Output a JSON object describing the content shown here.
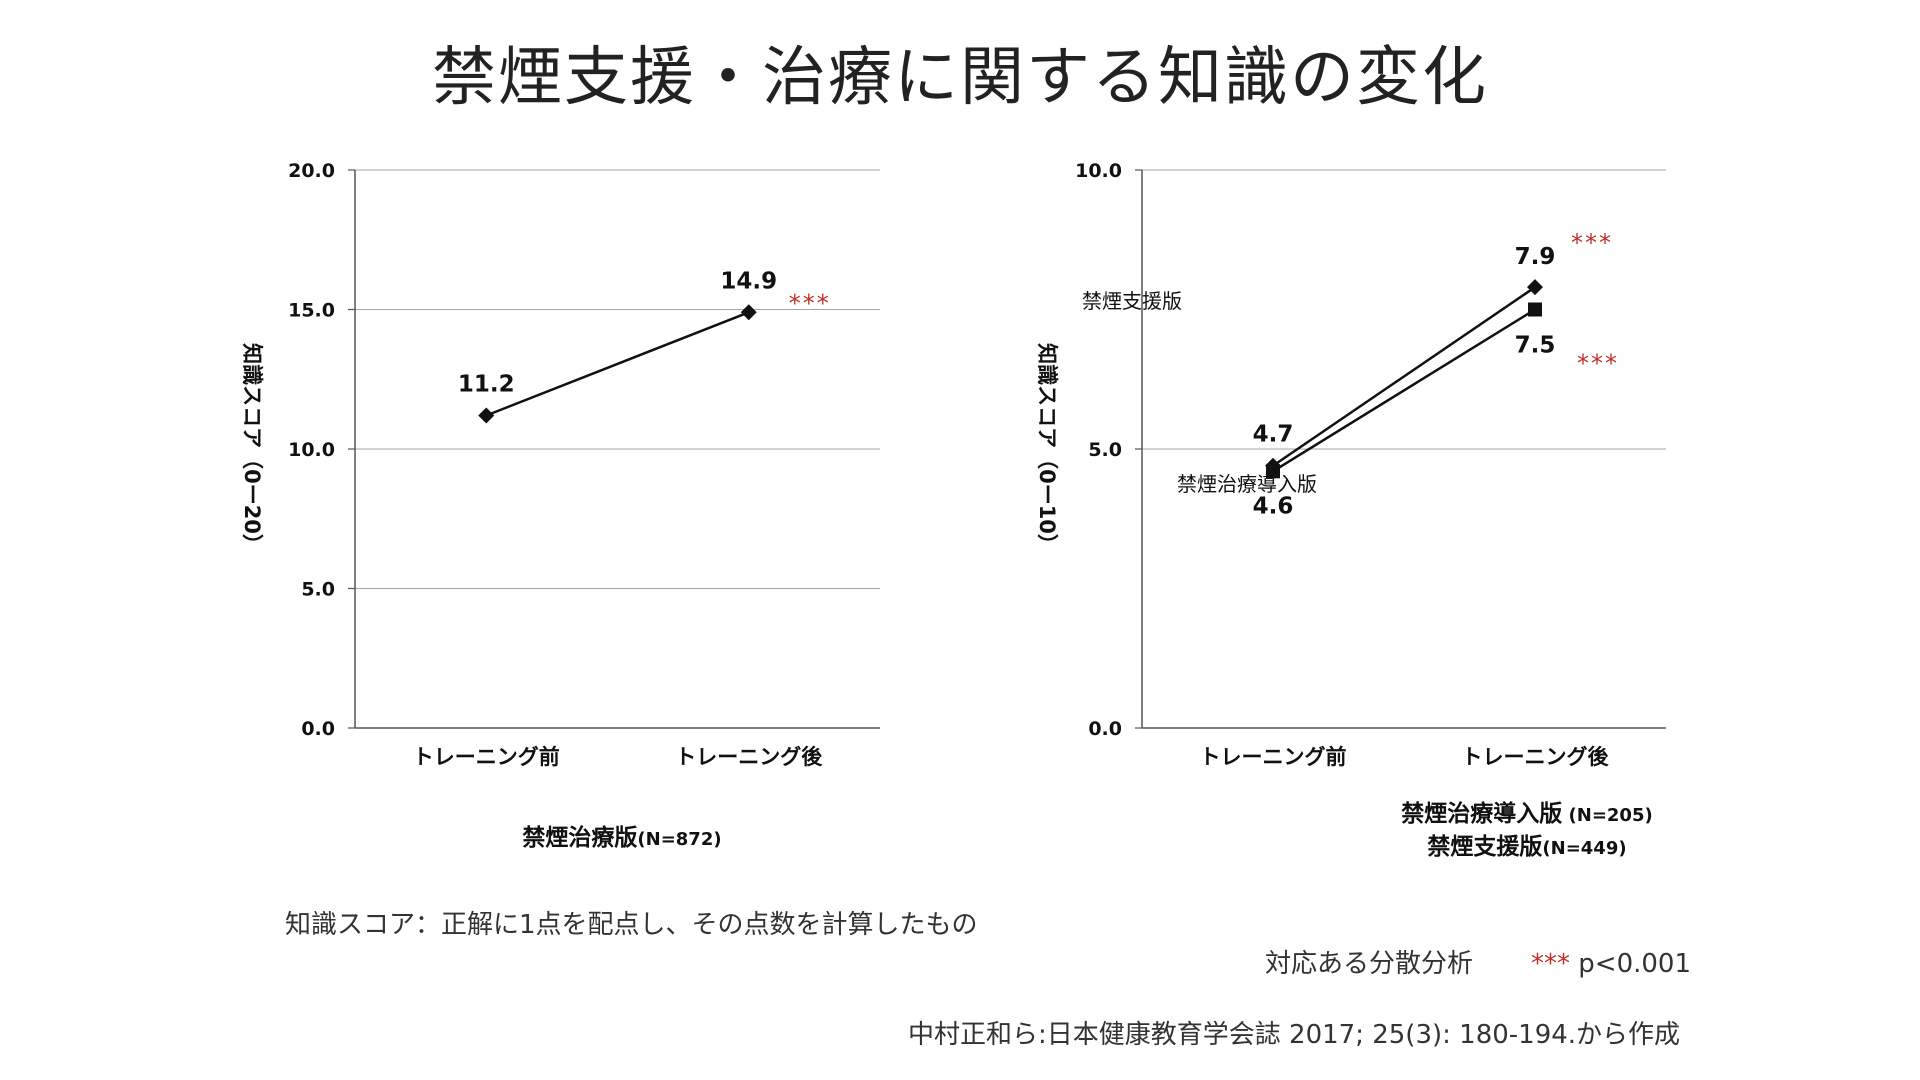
{
  "title": "禁煙支援・治療に関する知識の変化",
  "chart_data": [
    {
      "type": "line",
      "ylabel": "知識スコア（0ー20）",
      "ylim": [
        0,
        20
      ],
      "yticks": [
        "0.0",
        "5.0",
        "10.0",
        "15.0",
        "20.0"
      ],
      "categories": [
        "トレーニング前",
        "トレーニング後"
      ],
      "series": [
        {
          "name": "",
          "marker": "diamond",
          "values": [
            11.2,
            14.9
          ],
          "labels": [
            "11.2",
            "14.9"
          ]
        }
      ],
      "significance": [
        "***"
      ],
      "group_label": {
        "main": "禁煙治療版",
        "n": "(N=872)"
      },
      "grid": true
    },
    {
      "type": "line",
      "ylabel": "知識スコア（0ー10）",
      "ylim": [
        0,
        10
      ],
      "yticks": [
        "0.0",
        "5.0",
        "10.0"
      ],
      "categories": [
        "トレーニング前",
        "トレーニング後"
      ],
      "series": [
        {
          "name": "禁煙支援版",
          "marker": "diamond",
          "values": [
            4.7,
            7.9
          ],
          "labels": [
            "4.7",
            "7.9"
          ]
        },
        {
          "name": "禁煙治療導入版",
          "marker": "square",
          "values": [
            4.6,
            7.5
          ],
          "labels": [
            "4.6",
            "7.5"
          ]
        }
      ],
      "significance": [
        "***",
        "***"
      ],
      "group_label": [
        {
          "main": "禁煙治療導入版",
          "n": " (N=205)"
        },
        {
          "main": "禁煙支援版",
          "n": "(N=449)"
        }
      ],
      "grid": true
    }
  ],
  "notes": {
    "definition": "知識スコア：正解に1点を配点し、その点数を計算したもの",
    "analysis_label": "対応ある分散分析",
    "sig_marker": "***",
    "sig_value": " p<0.001",
    "source": "中村正和ら:日本健康教育学会誌 2017; 25(3): 180-194.から作成"
  },
  "colors": {
    "line": "#111111",
    "grid": "#a6a6a6",
    "significance": "#c0302b"
  }
}
